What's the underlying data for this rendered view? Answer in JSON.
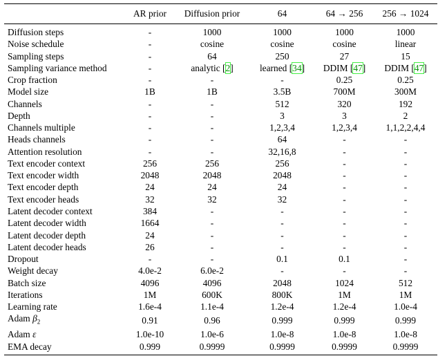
{
  "table": {
    "headers": [
      "",
      "AR prior",
      "Diffusion prior",
      "64",
      "64 → 256",
      "256 → 1024"
    ],
    "rows": [
      [
        "Diffusion steps",
        "-",
        "1000",
        "1000",
        "1000",
        "1000"
      ],
      [
        "Noise schedule",
        "-",
        "cosine",
        "cosine",
        "cosine",
        "linear"
      ],
      [
        "Sampling steps",
        "-",
        "64",
        "250",
        "27",
        "15"
      ],
      [
        "Sampling variance method",
        "-",
        "analytic [2]",
        "learned [34]",
        "DDIM [47]",
        "DDIM [47]"
      ],
      [
        "Crop fraction",
        "-",
        "-",
        "-",
        "0.25",
        "0.25"
      ],
      [
        "Model size",
        "1B",
        "1B",
        "3.5B",
        "700M",
        "300M"
      ],
      [
        "Channels",
        "-",
        "-",
        "512",
        "320",
        "192"
      ],
      [
        "Depth",
        "-",
        "-",
        "3",
        "3",
        "2"
      ],
      [
        "Channels multiple",
        "-",
        "-",
        "1,2,3,4",
        "1,2,3,4",
        "1,1,2,2,4,4"
      ],
      [
        "Heads channels",
        "-",
        "-",
        "64",
        "-",
        "-"
      ],
      [
        "Attention resolution",
        "-",
        "-",
        "32,16,8",
        "-",
        "-"
      ],
      [
        "Text encoder context",
        "256",
        "256",
        "256",
        "-",
        "-"
      ],
      [
        "Text encoder width",
        "2048",
        "2048",
        "2048",
        "-",
        "-"
      ],
      [
        "Text encoder depth",
        "24",
        "24",
        "24",
        "-",
        "-"
      ],
      [
        "Text encoder heads",
        "32",
        "32",
        "32",
        "-",
        "-"
      ],
      [
        "Latent decoder context",
        "384",
        "-",
        "-",
        "-",
        "-"
      ],
      [
        "Latent decoder width",
        "1664",
        "-",
        "-",
        "-",
        "-"
      ],
      [
        "Latent decoder depth",
        "24",
        "-",
        "-",
        "-",
        "-"
      ],
      [
        "Latent decoder heads",
        "26",
        "-",
        "-",
        "-",
        "-"
      ],
      [
        "Dropout",
        "-",
        "-",
        "0.1",
        "0.1",
        "-"
      ],
      [
        "Weight decay",
        "4.0e-2",
        "6.0e-2",
        "-",
        "-",
        "-"
      ],
      [
        "Batch size",
        "4096",
        "4096",
        "2048",
        "1024",
        "512"
      ],
      [
        "Iterations",
        "1M",
        "600K",
        "800K",
        "1M",
        "1M"
      ],
      [
        "Learning rate",
        "1.6e-4",
        "1.1e-4",
        "1.2e-4",
        "1.2e-4",
        "1.0e-4"
      ],
      [
        "Adam β2",
        "0.91",
        "0.96",
        "0.999",
        "0.999",
        "0.999"
      ],
      [
        "Adam ε",
        "1.0e-10",
        "1.0e-6",
        "1.0e-8",
        "1.0e-8",
        "1.0e-8"
      ],
      [
        "EMA decay",
        "0.999",
        "0.9999",
        "0.9999",
        "0.9999",
        "0.9999"
      ]
    ]
  }
}
